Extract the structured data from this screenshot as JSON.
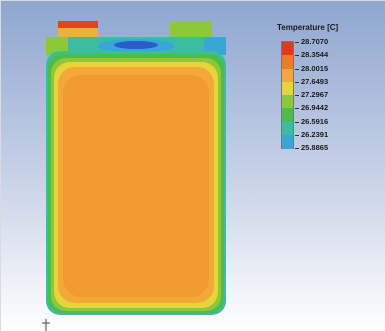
{
  "legend": {
    "title": "Temperature [C]",
    "levels": [
      {
        "label": "28.7070",
        "color": "#e03a1e"
      },
      {
        "label": "28.3544",
        "color": "#f07a28"
      },
      {
        "label": "28.0015",
        "color": "#f2a93a"
      },
      {
        "label": "27.6493",
        "color": "#e6d43a"
      },
      {
        "label": "27.2967",
        "color": "#8cc83a"
      },
      {
        "label": "26.9442",
        "color": "#4cbc4a"
      },
      {
        "label": "26.5916",
        "color": "#3cbca0"
      },
      {
        "label": "26.2391",
        "color": "#3aa6d8"
      },
      {
        "label": "25.8865",
        "color": "#2a5cc8"
      }
    ]
  }
}
